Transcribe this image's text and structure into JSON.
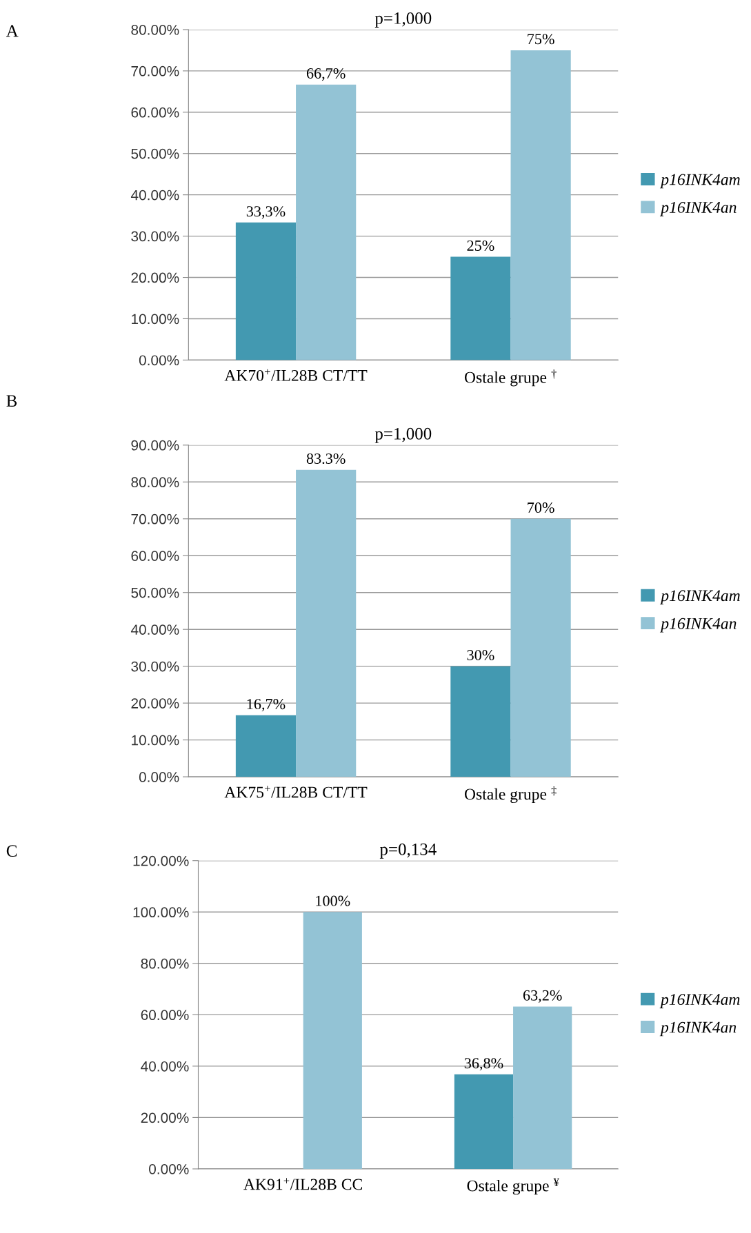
{
  "chart_data": [
    {
      "type": "bar",
      "title": "p=1,000",
      "annotations": [
        "A"
      ],
      "categories": [
        "AK70$^{+}$/IL28B CT/TT",
        "Ostale grupe $^{†}$"
      ],
      "series": [
        {
          "name": "p16INK4am",
          "color": "#4399b1",
          "values": [
            33.3,
            25
          ],
          "value_labels": [
            "33,3%",
            "25%"
          ]
        },
        {
          "name": "p16INK4an",
          "color": "#93c3d5",
          "values": [
            66.7,
            75
          ],
          "value_labels": [
            "66,7%",
            "75%"
          ]
        }
      ],
      "ylim": [
        0,
        80
      ],
      "yticks": [
        {
          "value": 0,
          "label": "0.00%"
        },
        {
          "value": 10,
          "label": "10.00%"
        },
        {
          "value": 20,
          "label": "20.00%"
        },
        {
          "value": 30,
          "label": "30.00%"
        },
        {
          "value": 40,
          "label": "40.00%"
        },
        {
          "value": 50,
          "label": "50.00%"
        },
        {
          "value": 60,
          "label": "60.00%"
        },
        {
          "value": 70,
          "label": "70.00%"
        },
        {
          "value": 80,
          "label": "80.00%"
        }
      ],
      "grid": "y",
      "legend": "right"
    },
    {
      "type": "bar",
      "title": "p=1,000",
      "annotations": [
        "B"
      ],
      "categories": [
        "AK75$^{+}$/IL28B CT/TT",
        "Ostale grupe $^{‡}$"
      ],
      "series": [
        {
          "name": "p16INK4am",
          "color": "#4399b1",
          "values": [
            16.7,
            30
          ],
          "value_labels": [
            "16,7%",
            "30%"
          ]
        },
        {
          "name": "p16INK4an",
          "color": "#93c3d5",
          "values": [
            83.3,
            70
          ],
          "value_labels": [
            "83.3%",
            "70%"
          ]
        }
      ],
      "ylim": [
        0,
        90
      ],
      "yticks": [
        {
          "value": 0,
          "label": "0.00%"
        },
        {
          "value": 10,
          "label": "10.00%"
        },
        {
          "value": 20,
          "label": "20.00%"
        },
        {
          "value": 30,
          "label": "30.00%"
        },
        {
          "value": 40,
          "label": "40.00%"
        },
        {
          "value": 50,
          "label": "50.00%"
        },
        {
          "value": 60,
          "label": "60.00%"
        },
        {
          "value": 70,
          "label": "70.00%"
        },
        {
          "value": 80,
          "label": "80.00%"
        },
        {
          "value": 90,
          "label": "90.00%"
        }
      ],
      "grid": "y",
      "legend": "right"
    },
    {
      "type": "bar",
      "title": "p=0,134",
      "annotations": [
        "C"
      ],
      "categories": [
        "AK91$^{+}$/IL28B CC",
        "Ostale grupe $^{¥}$"
      ],
      "series": [
        {
          "name": "p16INK4am",
          "color": "#4399b1",
          "values": [
            0,
            36.8
          ],
          "value_labels": [
            null,
            "36,8%"
          ]
        },
        {
          "name": "p16INK4an",
          "color": "#93c3d5",
          "values": [
            100,
            63.2
          ],
          "value_labels": [
            "100%",
            "63,2%"
          ]
        }
      ],
      "ylim": [
        0,
        120
      ],
      "yticks": [
        {
          "value": 0,
          "label": "0.00%"
        },
        {
          "value": 20,
          "label": "20.00%"
        },
        {
          "value": 40,
          "label": "40.00%"
        },
        {
          "value": 60,
          "label": "60.00%"
        },
        {
          "value": 80,
          "label": "80.00%"
        },
        {
          "value": 100,
          "label": "100.00%"
        },
        {
          "value": 120,
          "label": "120.00%"
        }
      ],
      "grid": "y",
      "legend": "right"
    }
  ]
}
